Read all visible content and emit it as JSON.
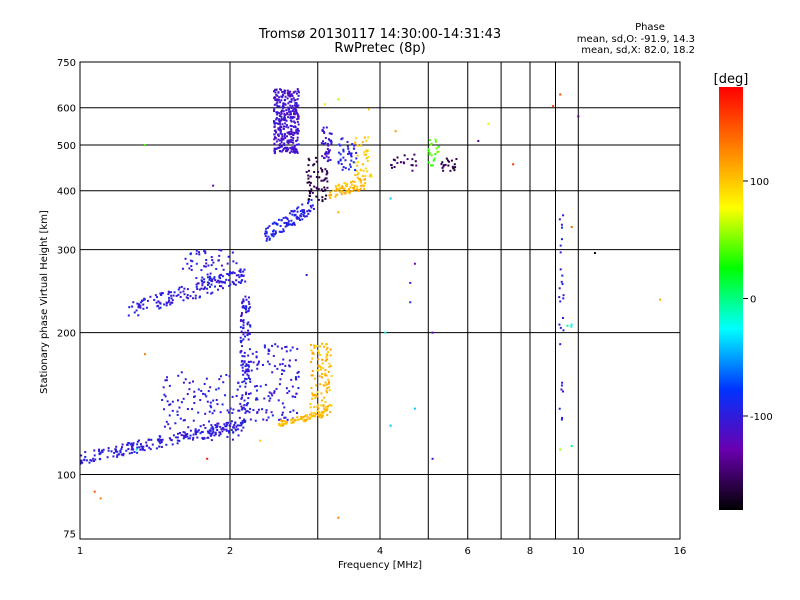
{
  "header": {
    "title_line1": "Tromsø 20130117 14:30:00-14:31:43",
    "title_line2": "RwPretec (8p)",
    "phase_label": "Phase",
    "stat_o": "mean, sd,O: -91.9, 14.3",
    "stat_x": "mean, sd,X:  82.0, 18.2"
  },
  "colorbar": {
    "unit": "[deg]",
    "ticks": [
      {
        "value": 100,
        "label": "100"
      },
      {
        "value": 0,
        "label": "0"
      },
      {
        "value": -100,
        "label": "-100"
      }
    ],
    "range": [
      -180,
      180
    ],
    "gradient": [
      "#000000",
      "#6a00b0",
      "#0033ff",
      "#00ffff",
      "#00ff00",
      "#ffff00",
      "#ff7f00",
      "#ff0000"
    ]
  },
  "chart_data": {
    "type": "scatter",
    "title": "Tromsø 20130117 14:30:00-14:31:43",
    "subtitle": "RwPretec (8p)",
    "xlabel": "Frequency [MHz]",
    "ylabel": "Stationary phase Virtual Height [km]",
    "xscale": "log",
    "yscale": "log",
    "xlim": [
      1,
      16
    ],
    "ylim": [
      73,
      750
    ],
    "xticks": [
      {
        "value": 1,
        "label": "1"
      },
      {
        "value": 2,
        "label": "2"
      },
      {
        "value": 4,
        "label": "4"
      },
      {
        "value": 6,
        "label": "6"
      },
      {
        "value": 8,
        "label": "8"
      },
      {
        "value": 10,
        "label": "10"
      },
      {
        "value": 16,
        "label": "16"
      }
    ],
    "xgrid": [
      1,
      2,
      3,
      4,
      5,
      6,
      7,
      8,
      9,
      10
    ],
    "yticks": [
      {
        "value": 75,
        "label": "75"
      },
      {
        "value": 100,
        "label": "100"
      },
      {
        "value": 200,
        "label": "200"
      },
      {
        "value": 300,
        "label": "300"
      },
      {
        "value": 400,
        "label": "400"
      },
      {
        "value": 500,
        "label": "500"
      },
      {
        "value": 600,
        "label": "600"
      },
      {
        "value": 750,
        "label": "750"
      }
    ],
    "ygrid": [
      100,
      200,
      300,
      400,
      500,
      600
    ],
    "color_scale": "phase [deg]",
    "clusters": [
      {
        "x": [
          1.0,
          2.15
        ],
        "y": [
          108,
          128
        ],
        "phase": -100,
        "n": 230,
        "shape": "trace",
        "spread": 0.03
      },
      {
        "x": [
          1.45,
          2.15
        ],
        "y": [
          118,
          165
        ],
        "phase": -100,
        "n": 120,
        "shape": "band",
        "spread": 0.0
      },
      {
        "x": [
          2.1,
          2.2
        ],
        "y": [
          135,
          240
        ],
        "phase": -100,
        "n": 120,
        "shape": "vertical",
        "spread": 0.0
      },
      {
        "x": [
          2.2,
          2.75
        ],
        "y": [
          130,
          190
        ],
        "phase": -100,
        "n": 110,
        "shape": "band",
        "spread": 0.0
      },
      {
        "x": [
          2.5,
          3.15
        ],
        "y": [
          128,
          135
        ],
        "phase": 105,
        "n": 70,
        "shape": "trace",
        "spread": 0.015
      },
      {
        "x": [
          2.9,
          3.2
        ],
        "y": [
          135,
          190
        ],
        "phase": 105,
        "n": 110,
        "shape": "band",
        "spread": 0.0
      },
      {
        "x": [
          1.25,
          2.15
        ],
        "y": [
          222,
          265
        ],
        "phase": -100,
        "n": 160,
        "shape": "trace",
        "spread": 0.04
      },
      {
        "x": [
          1.6,
          2.1
        ],
        "y": [
          255,
          300
        ],
        "phase": -100,
        "n": 60,
        "shape": "band",
        "spread": 0.0
      },
      {
        "x": [
          2.35,
          2.95
        ],
        "y": [
          320,
          375
        ],
        "phase": -95,
        "n": 110,
        "shape": "trace",
        "spread": 0.04
      },
      {
        "x": [
          2.85,
          3.15
        ],
        "y": [
          380,
          470
        ],
        "phase": -160,
        "n": 60,
        "shape": "band",
        "spread": 0.0
      },
      {
        "x": [
          3.05,
          3.2
        ],
        "y": [
          460,
          545
        ],
        "phase": -110,
        "n": 40,
        "shape": "band",
        "spread": 0.0
      },
      {
        "x": [
          3.15,
          3.75
        ],
        "y": [
          395,
          415
        ],
        "phase": 105,
        "n": 70,
        "shape": "trace",
        "spread": 0.03
      },
      {
        "x": [
          3.55,
          3.85
        ],
        "y": [
          420,
          520
        ],
        "phase": 100,
        "n": 40,
        "shape": "band",
        "spread": 0.0
      },
      {
        "x": [
          2.45,
          2.75
        ],
        "y": [
          480,
          660
        ],
        "phase": -110,
        "n": 330,
        "shape": "band",
        "spread": 0.0
      },
      {
        "x": [
          3.3,
          3.6
        ],
        "y": [
          440,
          520
        ],
        "phase": -95,
        "n": 40,
        "shape": "band",
        "spread": 0.0
      },
      {
        "x": [
          5.3,
          5.7
        ],
        "y": [
          440,
          470
        ],
        "phase": -160,
        "n": 20,
        "shape": "band",
        "spread": 0.0
      },
      {
        "x": [
          5.0,
          5.25
        ],
        "y": [
          450,
          520
        ],
        "phase": 40,
        "n": 20,
        "shape": "band",
        "spread": 0.0
      },
      {
        "x": [
          4.2,
          4.75
        ],
        "y": [
          440,
          480
        ],
        "phase": -150,
        "n": 20,
        "shape": "band",
        "spread": 0.0
      },
      {
        "x": [
          9.15,
          9.35
        ],
        "y": [
          120,
          380
        ],
        "phase": -100,
        "n": 28,
        "shape": "vertical",
        "spread": 0.0
      },
      {
        "x": [
          9.45,
          9.7
        ],
        "y": [
          200,
          210
        ],
        "phase": -10,
        "n": 3,
        "shape": "band",
        "spread": 0.0
      }
    ],
    "points": [
      {
        "x": 1.35,
        "y": 500,
        "phase": 40
      },
      {
        "x": 1.35,
        "y": 180,
        "phase": 130
      },
      {
        "x": 1.3,
        "y": 113,
        "phase": -20
      },
      {
        "x": 1.1,
        "y": 89,
        "phase": 130
      },
      {
        "x": 1.07,
        "y": 92,
        "phase": 150
      },
      {
        "x": 1.8,
        "y": 108,
        "phase": 170
      },
      {
        "x": 1.85,
        "y": 410,
        "phase": -120
      },
      {
        "x": 2.85,
        "y": 265,
        "phase": -100
      },
      {
        "x": 2.3,
        "y": 118,
        "phase": 100
      },
      {
        "x": 3.3,
        "y": 81,
        "phase": 130
      },
      {
        "x": 3.3,
        "y": 360,
        "phase": 110
      },
      {
        "x": 3.3,
        "y": 625,
        "phase": 60
      },
      {
        "x": 3.1,
        "y": 610,
        "phase": 90
      },
      {
        "x": 4.1,
        "y": 200,
        "phase": -20
      },
      {
        "x": 4.2,
        "y": 127,
        "phase": -40
      },
      {
        "x": 4.2,
        "y": 385,
        "phase": -40
      },
      {
        "x": 4.6,
        "y": 255,
        "phase": -100
      },
      {
        "x": 4.6,
        "y": 232,
        "phase": -90
      },
      {
        "x": 4.7,
        "y": 280,
        "phase": -130
      },
      {
        "x": 4.7,
        "y": 138,
        "phase": -40
      },
      {
        "x": 5.1,
        "y": 200,
        "phase": -130
      },
      {
        "x": 5.1,
        "y": 108,
        "phase": -100
      },
      {
        "x": 6.3,
        "y": 510,
        "phase": -140
      },
      {
        "x": 6.6,
        "y": 555,
        "phase": 70
      },
      {
        "x": 7.4,
        "y": 455,
        "phase": 160
      },
      {
        "x": 8.9,
        "y": 605,
        "phase": 150
      },
      {
        "x": 9.2,
        "y": 640,
        "phase": 150
      },
      {
        "x": 10.0,
        "y": 575,
        "phase": -140
      },
      {
        "x": 9.7,
        "y": 335,
        "phase": 140
      },
      {
        "x": 9.7,
        "y": 115,
        "phase": 0
      },
      {
        "x": 9.2,
        "y": 113,
        "phase": 60
      },
      {
        "x": 10.8,
        "y": 295,
        "phase": -180
      },
      {
        "x": 14.6,
        "y": 235,
        "phase": 110
      },
      {
        "x": 4.3,
        "y": 535,
        "phase": 120
      },
      {
        "x": 3.8,
        "y": 595,
        "phase": 100
      }
    ]
  }
}
